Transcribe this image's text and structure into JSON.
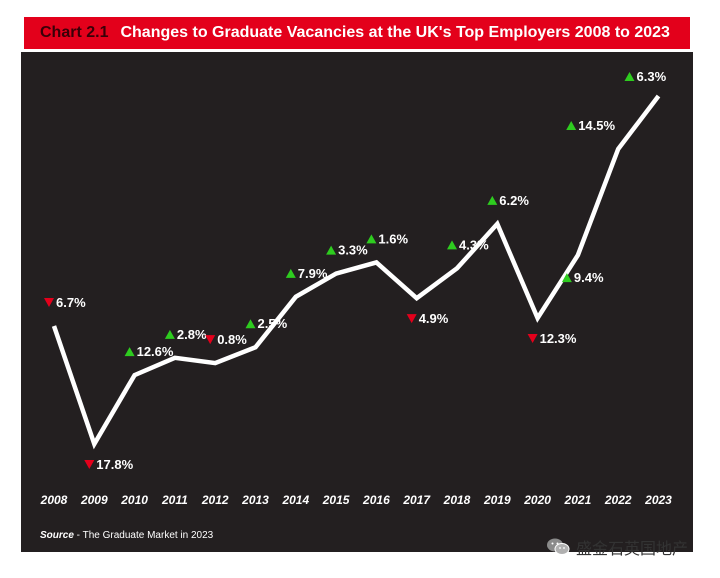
{
  "header": {
    "chart_number": "Chart 2.1",
    "title": "Changes to Graduate Vacancies at the UK's Top Employers 2008 to 2023"
  },
  "source": {
    "label": "Source",
    "text": " - The Graduate Market in 2023"
  },
  "watermark": {
    "text": "盛金石英国地产",
    "icon": "wechat-icon"
  },
  "colors": {
    "header_bg": "#e3001b",
    "panel_bg": "#231f20",
    "line": "#ffffff",
    "up": "#2ecc1f",
    "down": "#e3001b"
  },
  "chart_data": {
    "type": "line",
    "title": "Changes to Graduate Vacancies at the UK's Top Employers 2008 to 2023",
    "xlabel": "",
    "ylabel": "",
    "grid": false,
    "categories": [
      "2008",
      "2009",
      "2010",
      "2011",
      "2012",
      "2013",
      "2014",
      "2015",
      "2016",
      "2017",
      "2018",
      "2019",
      "2020",
      "2021",
      "2022",
      "2023"
    ],
    "series": [
      {
        "index": [
          100,
          82.2,
          92.6,
          95.2,
          94.4,
          96.8,
          104.4,
          107.9,
          109.6,
          104.2,
          108.7,
          115.4,
          101.2,
          110.7,
          126.7,
          134.7
        ],
        "changes": [
          {
            "direction": "down",
            "label": "6.7%"
          },
          {
            "direction": "down",
            "label": "17.8%"
          },
          {
            "direction": "up",
            "label": "12.6%"
          },
          {
            "direction": "up",
            "label": "2.8%"
          },
          {
            "direction": "down",
            "label": "0.8%"
          },
          {
            "direction": "up",
            "label": "2.5%"
          },
          {
            "direction": "up",
            "label": "7.9%"
          },
          {
            "direction": "up",
            "label": "3.3%"
          },
          {
            "direction": "up",
            "label": "1.6%"
          },
          {
            "direction": "down",
            "label": "4.9%"
          },
          {
            "direction": "up",
            "label": "4.3%"
          },
          {
            "direction": "up",
            "label": "6.2%"
          },
          {
            "direction": "down",
            "label": "12.3%"
          },
          {
            "direction": "up",
            "label": "9.4%"
          },
          {
            "direction": "up",
            "label": "14.5%"
          },
          {
            "direction": "up",
            "label": "6.3%"
          }
        ]
      }
    ]
  }
}
